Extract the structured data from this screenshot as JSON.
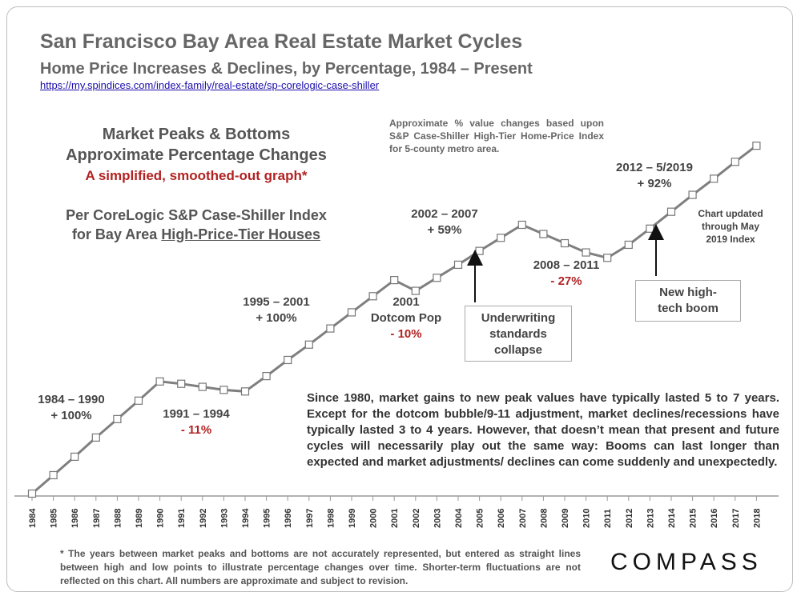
{
  "header": {
    "title": "San Francisco Bay Area Real Estate Market Cycles",
    "subtitle": "Home Price Increases & Declines, by Percentage, 1984 – Present",
    "source_url": "https://my.spindices.com/index-family/real-estate/sp-corelogic-case-shiller"
  },
  "panel": {
    "line1": "Market Peaks & Bottoms",
    "line2": "Approximate Percentage Changes",
    "line3": "A simplified, smoothed-out graph*",
    "per1": "Per CoreLogic S&P Case-Shiller Index",
    "per2_prefix": "for Bay Area ",
    "per2_underlined": "High-Price-Tier Houses"
  },
  "approx_note": "Approximate % value changes based upon S&P Case-Shiller High-Tier Home-Price Index for 5-county metro area.",
  "annotations": {
    "a1984": {
      "period": "1984 – 1990",
      "change": "+ 100%"
    },
    "a1991": {
      "period": "1991 – 1994",
      "change": "- 11%"
    },
    "a1995": {
      "period": "1995 – 2001",
      "change": "+ 100%"
    },
    "a2001": {
      "period": "2001",
      "name": "Dotcom Pop",
      "change": "- 10%"
    },
    "a2002": {
      "period": "2002 – 2007",
      "change": "+ 59%"
    },
    "a2008": {
      "period": "2008 – 2011",
      "change": "- 27%"
    },
    "a2012": {
      "period": "2012 – 5/2019",
      "change": "+ 92%"
    },
    "underwriting": [
      "Underwriting",
      "standards",
      "collapse"
    ],
    "hightech": [
      "New high-",
      "tech boom"
    ],
    "updated": [
      "Chart updated",
      "through May",
      "2019 Index"
    ]
  },
  "paragraph": "Since 1980, market gains to new peak values have typically lasted 5 to 7 years. Except for the dotcom bubble/9-11 adjustment, market declines/recessions have typically lasted 3 to 4 years. However, that doesn’t mean that present and future cycles will necessarily play out the same way: Booms can last longer than expected and market adjustments/ declines can come suddenly and unexpectedly.",
  "footnote": "* The years between market peaks and bottoms are not accurately represented, but entered as straight lines between high and low points to illustrate percentage changes over time. Shorter-term fluctuations are not reflected on this chart. All numbers are approximate and subject to revision.",
  "logo": "COMPASS",
  "colors": {
    "line": "#7f7f7f",
    "marker_fill": "#ffffff",
    "marker_stroke": "#777777",
    "accent_red": "#b22222"
  },
  "chart_data": {
    "type": "line",
    "title": "San Francisco Bay Area Real Estate Market Cycles",
    "xlabel": "",
    "ylabel": "",
    "x_ticks": [
      "1984",
      "1985",
      "1986",
      "1987",
      "1988",
      "1989",
      "1990",
      "1991",
      "1992",
      "1993",
      "1994",
      "1995",
      "1996",
      "1997",
      "1998",
      "1999",
      "2000",
      "2001",
      "2002",
      "2003",
      "2004",
      "2005",
      "2006",
      "2007",
      "2008",
      "2009",
      "2010",
      "2011",
      "2012",
      "2013",
      "2014",
      "2015",
      "2016",
      "2017",
      "2018"
    ],
    "ylim": [
      0,
      570
    ],
    "points": [
      [
        1984.0,
        0
      ],
      [
        1985.0,
        24
      ],
      [
        1986.0,
        48
      ],
      [
        1987.0,
        73
      ],
      [
        1988.0,
        97
      ],
      [
        1989.0,
        121
      ],
      [
        1990.0,
        146
      ],
      [
        1991.0,
        143
      ],
      [
        1992.0,
        139
      ],
      [
        1993.0,
        135
      ],
      [
        1994.0,
        133
      ],
      [
        1995.0,
        153
      ],
      [
        1996.0,
        174
      ],
      [
        1997.0,
        194
      ],
      [
        1998.0,
        215
      ],
      [
        1999.0,
        236
      ],
      [
        2000.0,
        257
      ],
      [
        2001.0,
        278
      ],
      [
        2002.0,
        264
      ],
      [
        2003.0,
        281
      ],
      [
        2004.0,
        298
      ],
      [
        2005.0,
        316
      ],
      [
        2006.0,
        333
      ],
      [
        2007.0,
        350
      ],
      [
        2008.0,
        338
      ],
      [
        2009.0,
        326
      ],
      [
        2010.0,
        314
      ],
      [
        2011.0,
        307
      ],
      [
        2012.0,
        324
      ],
      [
        2013.0,
        345
      ],
      [
        2014.0,
        367
      ],
      [
        2015.0,
        389
      ],
      [
        2016.0,
        410
      ],
      [
        2017.0,
        432
      ],
      [
        2018.0,
        453
      ]
    ]
  }
}
